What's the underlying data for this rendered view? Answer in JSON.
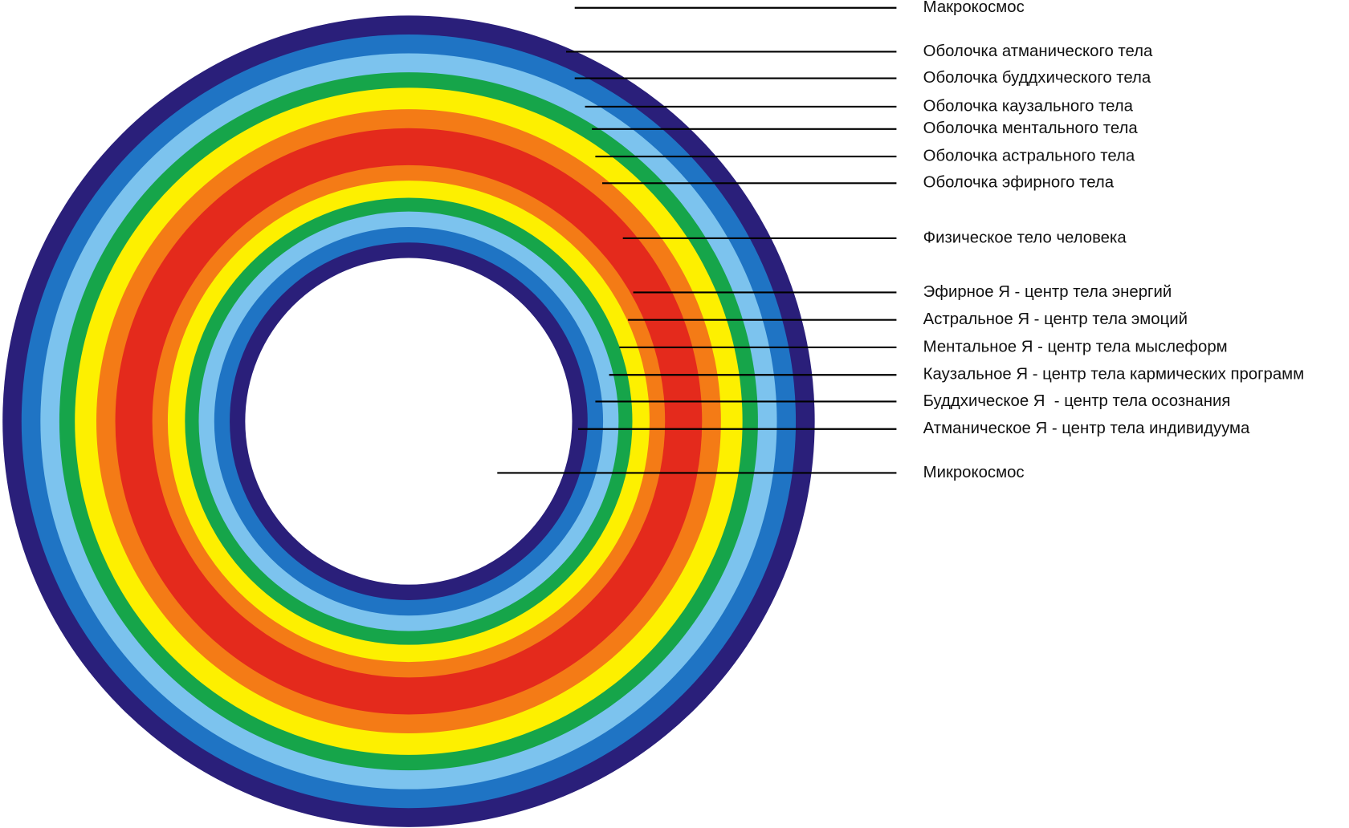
{
  "labels": [
    "Макрокосмос",
    "Оболочка атманического тела",
    "Оболочка буддхического тела",
    "Оболочка каузального тела",
    "Оболочка ментального тела",
    "Оболочка астрального тела",
    "Оболочка эфирного тела",
    "Физическое тело человека",
    "Эфирное Я - центр тела энергий",
    "Астральное Я - центр тела эмоций",
    "Ментальное Я - центр тела мыслеформ",
    "Каузальное Я - центр тела кармических программ",
    "Буддхическое Я  - центр тела осознания",
    "Атманическое Я - центр тела индивидуума",
    "Микрокосмос"
  ]
}
